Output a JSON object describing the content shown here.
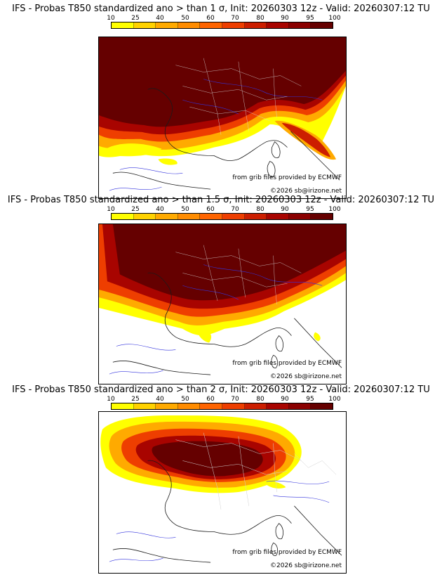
{
  "scale": {
    "labels": [
      "10",
      "25",
      "40",
      "50",
      "60",
      "70",
      "80",
      "90",
      "95",
      "100"
    ],
    "colors": [
      "#ffff00",
      "#ffd200",
      "#ffaa00",
      "#ff8c00",
      "#ff6400",
      "#ee3e00",
      "#cc1e00",
      "#a80400",
      "#8a0000",
      "#650000"
    ]
  },
  "map_colors": {
    "land": "#ffffff",
    "coast": "#1a1a1a",
    "rivers": "#3333dd",
    "borders": "#d8d8d8"
  },
  "panels": [
    {
      "title": "IFS - Probas T850  standardized ano > than 1 σ, Init: 20260303 12z - Valid: 20260307:12 TU",
      "source": "from grib files provided by ECMWF",
      "copyright": "©2026 sb@irizone.net"
    },
    {
      "title": "IFS - Probas T850  standardized ano > than 1.5 σ, Init: 20260303 12z - Valid: 20260307:12 TU",
      "source": "from grib files provided by ECMWF",
      "copyright": "©2026 sb@irizone.net"
    },
    {
      "title": "IFS - Probas T850  standardized ano > than 2 σ, Init: 20260303 12z - Valid: 20260307:12 TU",
      "source": "from grib files provided by ECMWF",
      "copyright": "©2026 sb@irizone.net"
    }
  ]
}
